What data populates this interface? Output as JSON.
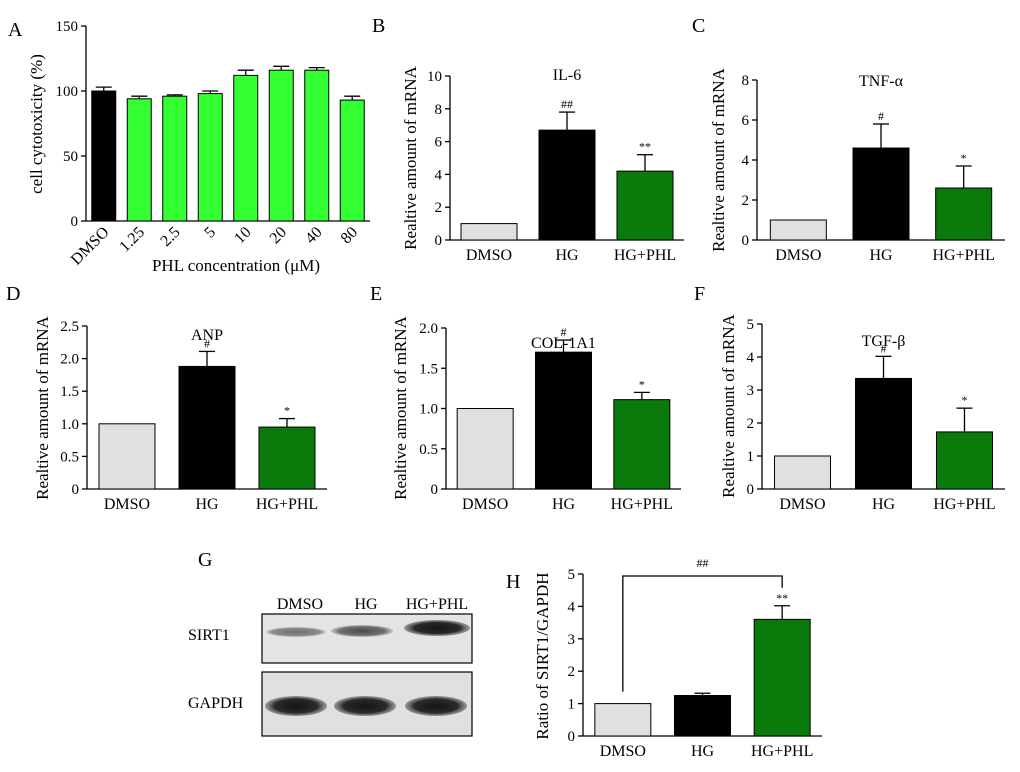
{
  "panels": {
    "A": "A",
    "B": "B",
    "C": "C",
    "D": "D",
    "E": "E",
    "F": "F",
    "G": "G",
    "H": "H"
  },
  "colors": {
    "dmso_single": "#000000",
    "phl_light": "#33ff33",
    "dmso": "#e0e0e0",
    "hg": "#000000",
    "hgphl": "#0a7a0a"
  },
  "chart_data": [
    {
      "panel": "A",
      "type": "bar",
      "title": "",
      "xlabel": "PHL concentration (μM)",
      "ylabel": "cell cytotoxicity (%)",
      "ylim": [
        0,
        150
      ],
      "yticks": [
        0,
        50,
        100,
        150
      ],
      "categories": [
        "DMSO",
        "1.25",
        "2.5",
        "5",
        "10",
        "20",
        "40",
        "80"
      ],
      "values": [
        100,
        94,
        96,
        98,
        112,
        116,
        116,
        93
      ],
      "errors": [
        3,
        2,
        1,
        2,
        4,
        3,
        2,
        3
      ],
      "annotations": [
        "",
        "",
        "",
        "",
        "",
        "",
        "",
        ""
      ]
    },
    {
      "panel": "B",
      "type": "bar",
      "title": "IL-6",
      "xlabel": "",
      "ylabel": "Realtive amount of mRNA",
      "ylim": [
        0,
        10
      ],
      "yticks": [
        0,
        2,
        4,
        6,
        8,
        10
      ],
      "categories": [
        "DMSO",
        "HG",
        "HG+PHL"
      ],
      "values": [
        1.0,
        6.7,
        4.2
      ],
      "errors": [
        0,
        1.1,
        1.0
      ],
      "annotations": [
        "",
        "##",
        "**"
      ]
    },
    {
      "panel": "C",
      "type": "bar",
      "title": "TNF-α",
      "xlabel": "",
      "ylabel": "Realtive amount of mRNA",
      "ylim": [
        0,
        8
      ],
      "yticks": [
        0,
        2,
        4,
        6,
        8
      ],
      "categories": [
        "DMSO",
        "HG",
        "HG+PHL"
      ],
      "values": [
        1.0,
        4.6,
        2.6
      ],
      "errors": [
        0,
        1.2,
        1.1
      ],
      "annotations": [
        "",
        "#",
        "*"
      ]
    },
    {
      "panel": "D",
      "type": "bar",
      "title": "ANP",
      "xlabel": "",
      "ylabel": "Realtive amount of mRNA",
      "ylim": [
        0,
        2.5
      ],
      "yticks": [
        "0",
        "0.5",
        "1.0",
        "1.5",
        "2.0",
        "2.5"
      ],
      "categories": [
        "DMSO",
        "HG",
        "HG+PHL"
      ],
      "values": [
        1.0,
        1.88,
        0.95
      ],
      "errors": [
        0,
        0.23,
        0.13
      ],
      "annotations": [
        "",
        "#",
        "*"
      ]
    },
    {
      "panel": "E",
      "type": "bar",
      "title": "COL-1A1",
      "xlabel": "",
      "ylabel": "Realtive amount of mRNA",
      "ylim": [
        0,
        2.0
      ],
      "yticks": [
        "0",
        "0.5",
        "1.0",
        "1.5",
        "2.0"
      ],
      "categories": [
        "DMSO",
        "HG",
        "HG+PHL"
      ],
      "values": [
        1.0,
        1.7,
        1.11
      ],
      "errors": [
        0,
        0.15,
        0.09
      ],
      "annotations": [
        "",
        "#",
        "*"
      ]
    },
    {
      "panel": "F",
      "type": "bar",
      "title": "TGF-β",
      "xlabel": "",
      "ylabel": "Realtive amount of mRNA",
      "ylim": [
        0,
        5
      ],
      "yticks": [
        0,
        1,
        2,
        3,
        4,
        5
      ],
      "categories": [
        "DMSO",
        "HG",
        "HG+PHL"
      ],
      "values": [
        1.0,
        3.35,
        1.73
      ],
      "errors": [
        0,
        0.67,
        0.72
      ],
      "annotations": [
        "",
        "#",
        "*"
      ]
    },
    {
      "panel": "H",
      "type": "bar",
      "title": "",
      "xlabel": "",
      "ylabel": "Ratio of SIRT1/GAPDH",
      "ylim": [
        0,
        5
      ],
      "yticks": [
        0,
        1,
        2,
        3,
        4,
        5
      ],
      "categories": [
        "DMSO",
        "HG",
        "HG+PHL"
      ],
      "values": [
        1.0,
        1.25,
        3.6
      ],
      "errors": [
        0,
        0.07,
        0.42
      ],
      "annotations": [
        "",
        "",
        "**"
      ],
      "bracket": {
        "from": "DMSO",
        "to": "HG+PHL",
        "label": "##"
      }
    }
  ],
  "blot": {
    "lanes": [
      "DMSO",
      "HG",
      "HG+PHL"
    ],
    "rows": [
      "SIRT1",
      "GAPDH"
    ]
  }
}
